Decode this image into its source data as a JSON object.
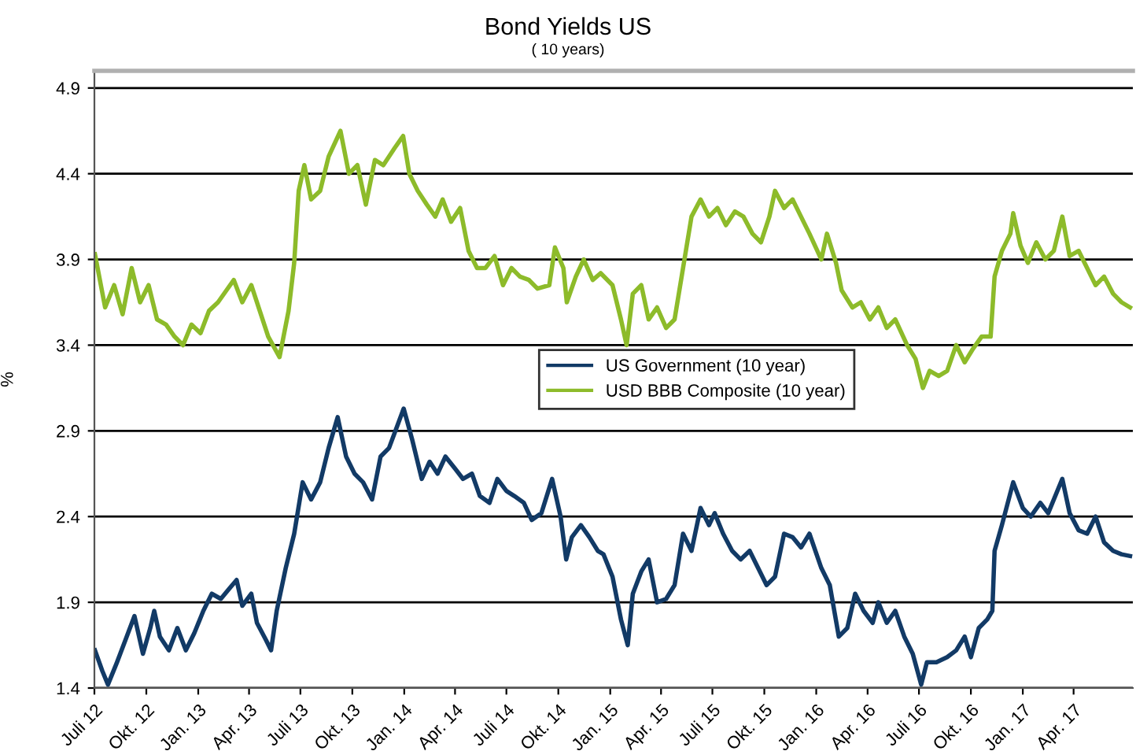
{
  "chart_data": {
    "type": "line",
    "title": "Bond Yields US",
    "subtitle": "( 10 years)",
    "ylabel": "%",
    "xlim": [
      "2012-07-01",
      "2017-07-15"
    ],
    "ylim": [
      1.4,
      5.0
    ],
    "yticks": [
      1.4,
      1.9,
      2.4,
      2.9,
      3.4,
      3.9,
      4.4,
      4.9
    ],
    "xticks": [
      {
        "value": "2012-07-01",
        "label": "Juli 12"
      },
      {
        "value": "2012-10-01",
        "label": "Okt. 12"
      },
      {
        "value": "2013-01-01",
        "label": "Jan. 13"
      },
      {
        "value": "2013-04-01",
        "label": "Apr. 13"
      },
      {
        "value": "2013-07-01",
        "label": "Juli 13"
      },
      {
        "value": "2013-10-01",
        "label": "Okt. 13"
      },
      {
        "value": "2014-01-01",
        "label": "Jan. 14"
      },
      {
        "value": "2014-04-01",
        "label": "Apr. 14"
      },
      {
        "value": "2014-07-01",
        "label": "Juli 14"
      },
      {
        "value": "2014-10-01",
        "label": "Okt. 14"
      },
      {
        "value": "2015-01-01",
        "label": "Jan. 15"
      },
      {
        "value": "2015-04-01",
        "label": "Apr. 15"
      },
      {
        "value": "2015-07-01",
        "label": "Juli 15"
      },
      {
        "value": "2015-10-01",
        "label": "Okt. 15"
      },
      {
        "value": "2016-01-01",
        "label": "Jan. 16"
      },
      {
        "value": "2016-04-01",
        "label": "Apr. 16"
      },
      {
        "value": "2016-07-01",
        "label": "Juli 16"
      },
      {
        "value": "2016-10-01",
        "label": "Okt. 16"
      },
      {
        "value": "2017-01-01",
        "label": "Jan. 17"
      },
      {
        "value": "2017-04-01",
        "label": "Apr. 17"
      }
    ],
    "grid": "y",
    "legend": "center",
    "marker": "none",
    "line_style": "solid",
    "series": [
      {
        "name": "US Government (10 year)",
        "color": "#123a66",
        "x": [
          "2012-07-02",
          "2012-07-15",
          "2012-07-25",
          "2012-08-10",
          "2012-08-25",
          "2012-09-10",
          "2012-09-25",
          "2012-10-08",
          "2012-10-15",
          "2012-10-25",
          "2012-11-10",
          "2012-11-25",
          "2012-12-10",
          "2012-12-25",
          "2013-01-10",
          "2013-01-25",
          "2013-02-10",
          "2013-02-25",
          "2013-03-10",
          "2013-03-20",
          "2013-04-05",
          "2013-04-15",
          "2013-05-01",
          "2013-05-10",
          "2013-05-20",
          "2013-06-05",
          "2013-06-20",
          "2013-07-05",
          "2013-07-20",
          "2013-08-05",
          "2013-08-20",
          "2013-09-05",
          "2013-09-20",
          "2013-10-05",
          "2013-10-20",
          "2013-11-05",
          "2013-11-20",
          "2013-12-05",
          "2013-12-31",
          "2014-01-15",
          "2014-02-01",
          "2014-02-15",
          "2014-03-01",
          "2014-03-15",
          "2014-04-01",
          "2014-04-15",
          "2014-05-01",
          "2014-05-15",
          "2014-06-01",
          "2014-06-15",
          "2014-07-01",
          "2014-07-15",
          "2014-08-01",
          "2014-08-15",
          "2014-09-01",
          "2014-09-20",
          "2014-10-05",
          "2014-10-15",
          "2014-10-25",
          "2014-11-10",
          "2014-11-25",
          "2014-12-10",
          "2014-12-20",
          "2015-01-05",
          "2015-01-20",
          "2015-02-01",
          "2015-02-10",
          "2015-02-25",
          "2015-03-10",
          "2015-03-25",
          "2015-04-10",
          "2015-04-25",
          "2015-05-10",
          "2015-05-25",
          "2015-06-10",
          "2015-06-25",
          "2015-07-05",
          "2015-07-20",
          "2015-08-05",
          "2015-08-20",
          "2015-09-05",
          "2015-09-20",
          "2015-10-05",
          "2015-10-20",
          "2015-11-05",
          "2015-11-20",
          "2015-12-05",
          "2015-12-20",
          "2016-01-10",
          "2016-01-25",
          "2016-02-10",
          "2016-02-25",
          "2016-03-10",
          "2016-03-25",
          "2016-04-10",
          "2016-04-20",
          "2016-05-05",
          "2016-05-20",
          "2016-06-05",
          "2016-06-20",
          "2016-07-05",
          "2016-07-15",
          "2016-08-01",
          "2016-08-20",
          "2016-09-05",
          "2016-09-20",
          "2016-10-01",
          "2016-10-15",
          "2016-10-30",
          "2016-11-08",
          "2016-11-12",
          "2016-11-25",
          "2016-12-15",
          "2017-01-01",
          "2017-01-15",
          "2017-02-01",
          "2017-02-15",
          "2017-03-12",
          "2017-03-25",
          "2017-04-10",
          "2017-04-25",
          "2017-05-10",
          "2017-05-25",
          "2017-06-10",
          "2017-06-25",
          "2017-07-10"
        ],
        "values": [
          1.62,
          1.5,
          1.42,
          1.55,
          1.68,
          1.82,
          1.6,
          1.75,
          1.85,
          1.7,
          1.62,
          1.75,
          1.62,
          1.72,
          1.85,
          1.95,
          1.92,
          1.98,
          2.03,
          1.88,
          1.95,
          1.78,
          1.68,
          1.62,
          1.85,
          2.1,
          2.3,
          2.6,
          2.5,
          2.6,
          2.8,
          2.98,
          2.75,
          2.65,
          2.6,
          2.5,
          2.75,
          2.8,
          3.03,
          2.85,
          2.62,
          2.72,
          2.65,
          2.75,
          2.68,
          2.62,
          2.65,
          2.52,
          2.48,
          2.62,
          2.55,
          2.52,
          2.48,
          2.38,
          2.42,
          2.62,
          2.4,
          2.15,
          2.28,
          2.35,
          2.28,
          2.2,
          2.18,
          2.05,
          1.8,
          1.65,
          1.95,
          2.08,
          2.15,
          1.9,
          1.92,
          2.0,
          2.3,
          2.2,
          2.45,
          2.35,
          2.42,
          2.3,
          2.2,
          2.15,
          2.2,
          2.1,
          2.0,
          2.05,
          2.3,
          2.28,
          2.22,
          2.3,
          2.1,
          2.0,
          1.7,
          1.75,
          1.95,
          1.85,
          1.78,
          1.9,
          1.78,
          1.85,
          1.7,
          1.6,
          1.42,
          1.55,
          1.55,
          1.58,
          1.62,
          1.7,
          1.58,
          1.75,
          1.8,
          1.85,
          2.2,
          2.35,
          2.6,
          2.45,
          2.4,
          2.48,
          2.42,
          2.62,
          2.42,
          2.32,
          2.3,
          2.4,
          2.25,
          2.2,
          2.18,
          2.17
        ]
      },
      {
        "name": "USD BBB Composite (10 year)",
        "color": "#8dbb2a",
        "x": [
          "2012-07-02",
          "2012-07-20",
          "2012-08-05",
          "2012-08-20",
          "2012-09-05",
          "2012-09-20",
          "2012-10-05",
          "2012-10-20",
          "2012-11-05",
          "2012-11-20",
          "2012-12-05",
          "2012-12-20",
          "2013-01-05",
          "2013-01-20",
          "2013-02-05",
          "2013-02-20",
          "2013-03-05",
          "2013-03-20",
          "2013-04-05",
          "2013-04-20",
          "2013-05-05",
          "2013-05-25",
          "2013-06-10",
          "2013-06-20",
          "2013-06-28",
          "2013-07-08",
          "2013-07-20",
          "2013-08-05",
          "2013-08-20",
          "2013-09-10",
          "2013-09-25",
          "2013-10-10",
          "2013-10-25",
          "2013-11-10",
          "2013-11-25",
          "2013-12-15",
          "2013-12-30",
          "2014-01-10",
          "2014-01-25",
          "2014-02-10",
          "2014-02-25",
          "2014-03-10",
          "2014-03-25",
          "2014-04-10",
          "2014-04-25",
          "2014-05-10",
          "2014-05-25",
          "2014-06-10",
          "2014-06-25",
          "2014-07-10",
          "2014-07-25",
          "2014-08-10",
          "2014-08-25",
          "2014-09-15",
          "2014-09-25",
          "2014-10-10",
          "2014-10-16",
          "2014-11-01",
          "2014-11-15",
          "2014-12-01",
          "2014-12-15",
          "2015-01-05",
          "2015-01-20",
          "2015-01-30",
          "2015-02-10",
          "2015-02-25",
          "2015-03-10",
          "2015-03-25",
          "2015-04-10",
          "2015-04-25",
          "2015-05-10",
          "2015-05-25",
          "2015-06-10",
          "2015-06-25",
          "2015-07-10",
          "2015-07-25",
          "2015-08-10",
          "2015-08-25",
          "2015-09-10",
          "2015-09-25",
          "2015-10-10",
          "2015-10-20",
          "2015-11-05",
          "2015-11-20",
          "2015-12-05",
          "2015-12-20",
          "2016-01-10",
          "2016-01-20",
          "2016-02-05",
          "2016-02-15",
          "2016-03-05",
          "2016-03-20",
          "2016-04-05",
          "2016-04-20",
          "2016-05-05",
          "2016-05-20",
          "2016-06-10",
          "2016-06-25",
          "2016-07-08",
          "2016-07-20",
          "2016-08-05",
          "2016-08-20",
          "2016-09-05",
          "2016-09-20",
          "2016-10-05",
          "2016-10-20",
          "2016-11-05",
          "2016-11-12",
          "2016-11-25",
          "2016-12-10",
          "2016-12-15",
          "2016-12-28",
          "2017-01-10",
          "2017-01-25",
          "2017-02-10",
          "2017-02-25",
          "2017-03-12",
          "2017-03-25",
          "2017-04-10",
          "2017-04-25",
          "2017-05-10",
          "2017-05-25",
          "2017-06-10",
          "2017-06-25",
          "2017-07-10"
        ],
        "values": [
          3.93,
          3.62,
          3.75,
          3.58,
          3.85,
          3.65,
          3.75,
          3.55,
          3.52,
          3.45,
          3.4,
          3.52,
          3.47,
          3.6,
          3.65,
          3.72,
          3.78,
          3.65,
          3.75,
          3.6,
          3.45,
          3.33,
          3.6,
          3.88,
          4.3,
          4.45,
          4.25,
          4.3,
          4.5,
          4.65,
          4.4,
          4.45,
          4.22,
          4.48,
          4.45,
          4.55,
          4.62,
          4.4,
          4.3,
          4.22,
          4.15,
          4.25,
          4.12,
          4.2,
          3.95,
          3.85,
          3.85,
          3.92,
          3.75,
          3.85,
          3.8,
          3.78,
          3.73,
          3.75,
          3.97,
          3.85,
          3.65,
          3.8,
          3.9,
          3.78,
          3.82,
          3.75,
          3.55,
          3.4,
          3.7,
          3.75,
          3.55,
          3.62,
          3.5,
          3.55,
          3.85,
          4.15,
          4.25,
          4.15,
          4.2,
          4.1,
          4.18,
          4.15,
          4.05,
          4.0,
          4.15,
          4.3,
          4.2,
          4.25,
          4.15,
          4.05,
          3.9,
          4.05,
          3.88,
          3.72,
          3.62,
          3.65,
          3.55,
          3.62,
          3.5,
          3.55,
          3.4,
          3.32,
          3.15,
          3.25,
          3.22,
          3.25,
          3.4,
          3.3,
          3.38,
          3.45,
          3.45,
          3.8,
          3.95,
          4.05,
          4.17,
          3.98,
          3.88,
          4.0,
          3.9,
          3.95,
          4.15,
          3.92,
          3.95,
          3.85,
          3.75,
          3.8,
          3.7,
          3.65,
          3.62
        ]
      }
    ]
  }
}
